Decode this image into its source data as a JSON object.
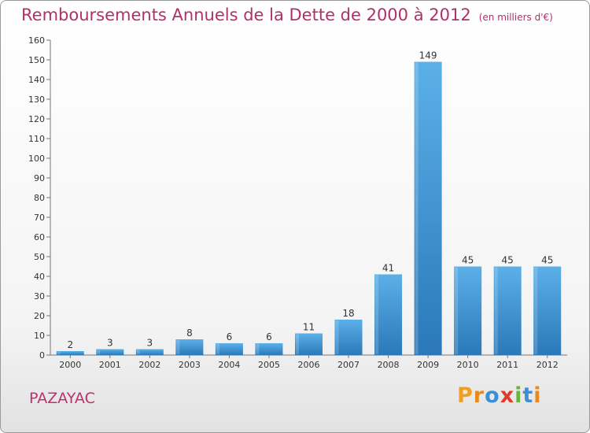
{
  "title": "Remboursements Annuels de la Dette de 2000 à 2012",
  "unit_note": "(en milliers d'€)",
  "commune": "PAZAYAC",
  "logo": {
    "letters": [
      {
        "ch": "P",
        "color": "#f0a020"
      },
      {
        "ch": "r",
        "color": "#e8891e"
      },
      {
        "ch": "o",
        "color": "#3a8fd6"
      },
      {
        "ch": "x",
        "color": "#e03a2a"
      },
      {
        "ch": "i",
        "color": "#6cb33e"
      },
      {
        "ch": "t",
        "color": "#3a8fd6"
      },
      {
        "ch": "i",
        "color": "#e8891e"
      }
    ]
  },
  "colors": {
    "bar": "#3d96d8",
    "bar_light": "#5cb0e8",
    "bar_dark": "#2a78b8",
    "title": "#b0306a"
  },
  "chart_data": {
    "type": "bar",
    "categories": [
      "2000",
      "2001",
      "2002",
      "2003",
      "2004",
      "2005",
      "2006",
      "2007",
      "2008",
      "2009",
      "2010",
      "2011",
      "2012"
    ],
    "values": [
      2,
      3,
      3,
      8,
      6,
      6,
      11,
      18,
      41,
      149,
      45,
      45,
      45
    ],
    "ylim": [
      0,
      160
    ],
    "yticks": [
      0,
      10,
      20,
      30,
      40,
      50,
      60,
      70,
      80,
      90,
      100,
      110,
      120,
      130,
      140,
      150,
      160
    ],
    "grid": false,
    "data_labels": true
  }
}
